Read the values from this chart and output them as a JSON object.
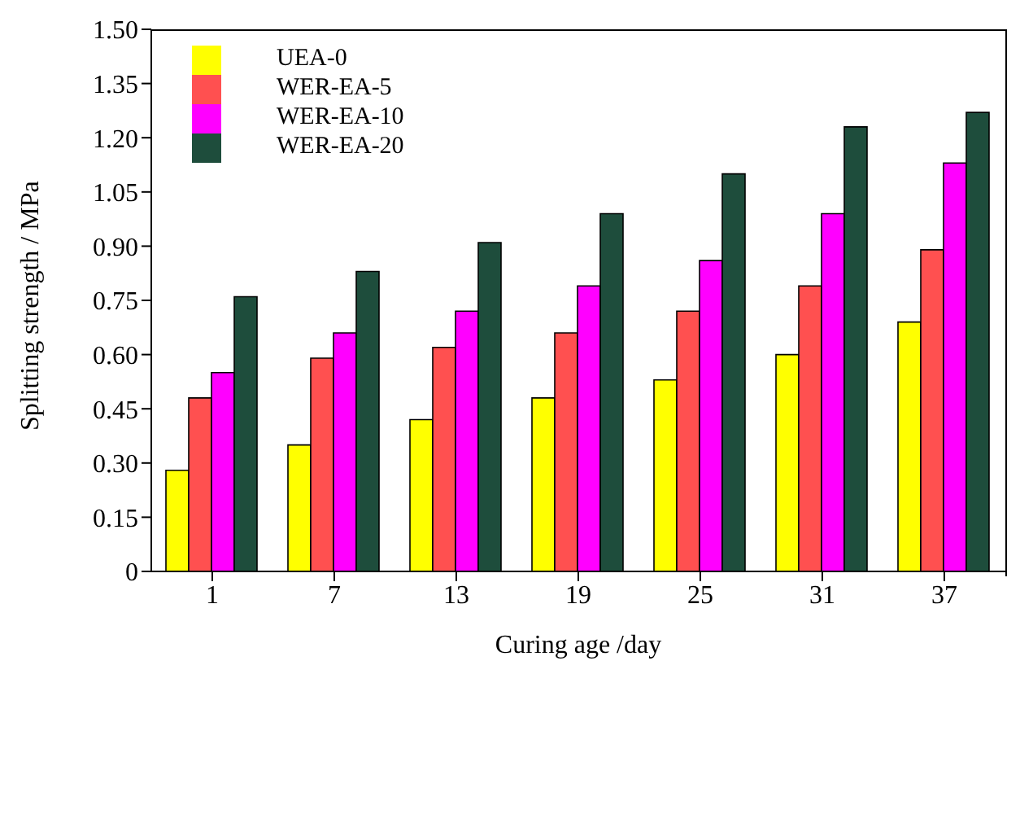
{
  "chart_data": {
    "type": "bar",
    "xlabel": "Curing age /day",
    "ylabel": "Splitting strength / MPa",
    "categories": [
      "1",
      "7",
      "13",
      "19",
      "25",
      "31",
      "37"
    ],
    "series": [
      {
        "name": "UEA-0",
        "color": "#ffff00",
        "values": [
          0.28,
          0.35,
          0.42,
          0.48,
          0.53,
          0.6,
          0.69
        ]
      },
      {
        "name": "WER-EA-5",
        "color": "#ff5050",
        "values": [
          0.48,
          0.59,
          0.62,
          0.66,
          0.72,
          0.79,
          0.89
        ]
      },
      {
        "name": "WER-EA-10",
        "color": "#ff00ff",
        "values": [
          0.55,
          0.66,
          0.72,
          0.79,
          0.86,
          0.99,
          1.13
        ]
      },
      {
        "name": "WER-EA-20",
        "color": "#1e4d3c",
        "values": [
          0.76,
          0.83,
          0.91,
          0.99,
          1.1,
          1.23,
          1.27
        ]
      }
    ],
    "ylim": [
      0,
      1.5
    ],
    "yticks": [
      0,
      {
        "value": 0.15,
        "label": "0.15"
      },
      {
        "value": 0.3,
        "label": "0.30"
      },
      {
        "value": 0.45,
        "label": "0.45"
      },
      {
        "value": 0.6,
        "label": "0.60"
      },
      {
        "value": 0.75,
        "label": "0.75"
      },
      {
        "value": 0.9,
        "label": "0.90"
      },
      {
        "value": 1.05,
        "label": "1.05"
      },
      {
        "value": 1.2,
        "label": "1.20"
      },
      {
        "value": 1.35,
        "label": "1.35"
      },
      {
        "value": 1.5,
        "label": "1.50"
      }
    ],
    "legend": "top left",
    "grid": false
  }
}
